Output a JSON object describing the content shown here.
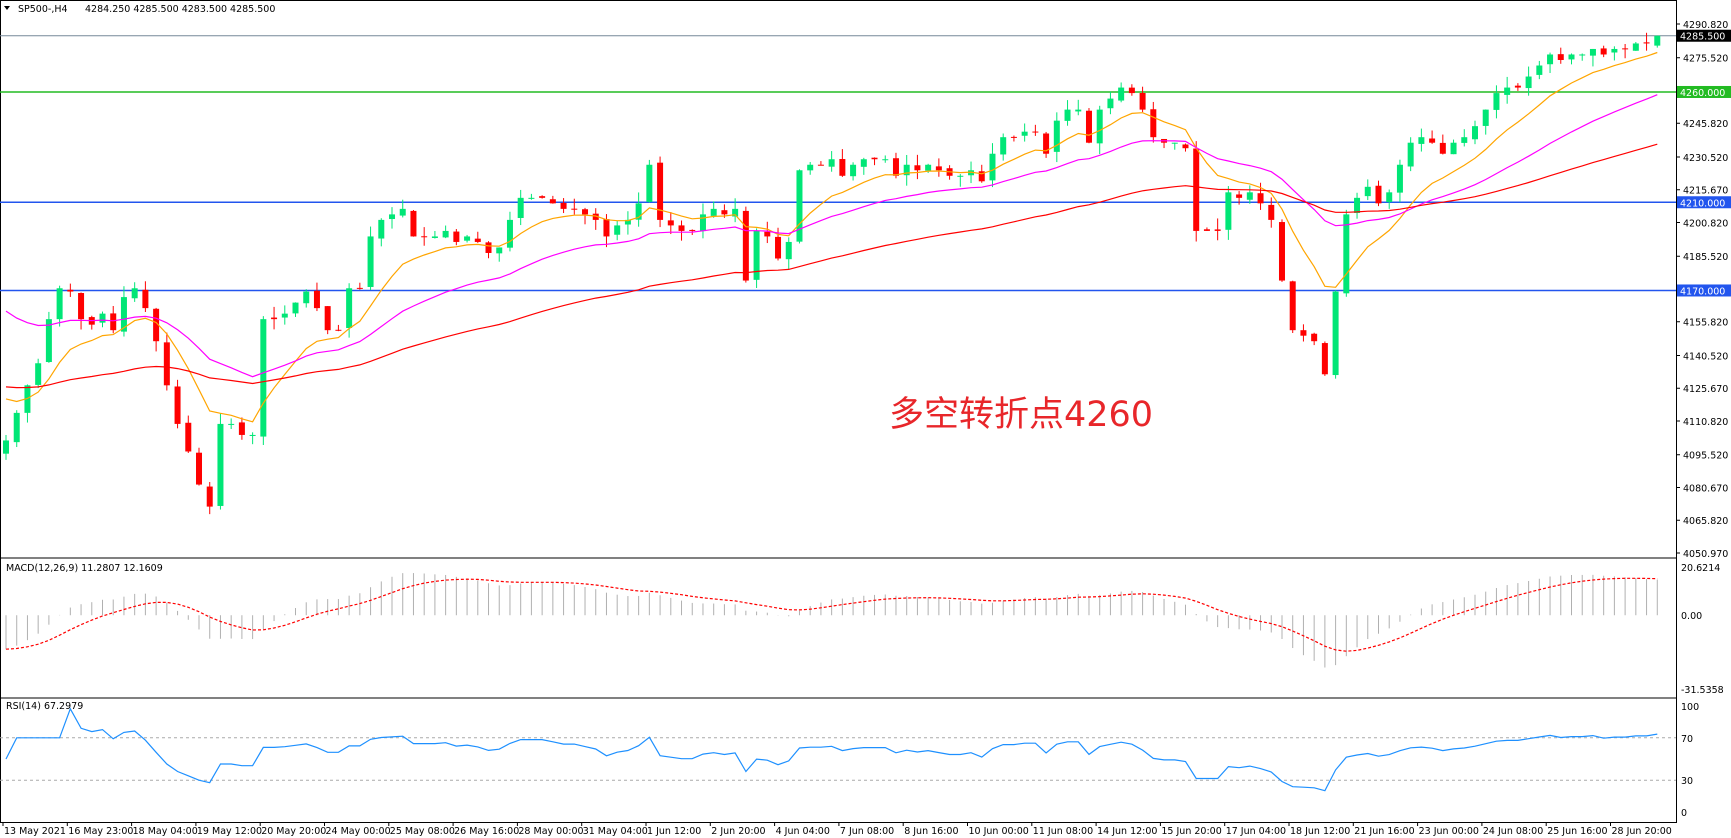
{
  "header": {
    "symbol": "SP500-,H4",
    "ohlc": "4284.250 4285.500 4283.500 4285.500"
  },
  "annotation": {
    "text": "多空转折点4260",
    "color": "#e8262a"
  },
  "colors": {
    "bull": "#00e676",
    "bear": "#ff0000",
    "ma_fast": "#ffa500",
    "ma_mid": "#ff00ff",
    "ma_slow": "#ff0000",
    "support": "#2255ee",
    "pivot": "#22bb22",
    "rsi": "#1e90ff",
    "macd_signal": "#ff0000",
    "macd_hist": "#b0b0b0"
  },
  "chart_data": {
    "type": "candlestick",
    "price_axis": {
      "ticks": [
        "4290.820",
        "4275.520",
        "4245.820",
        "4230.520",
        "4215.670",
        "4200.820",
        "4185.520",
        "4155.820",
        "4140.520",
        "4125.670",
        "4110.820",
        "4095.520",
        "4080.670",
        "4065.820",
        "4050.970"
      ],
      "range": [
        4050.97,
        4290.82
      ]
    },
    "current_price": "4285.500",
    "levels": [
      {
        "value": 4260,
        "label": "4260.000",
        "color": "#22bb22"
      },
      {
        "value": 4210,
        "label": "4210.000",
        "color": "#2255ee"
      },
      {
        "value": 4170,
        "label": "4170.000",
        "color": "#2255ee"
      }
    ],
    "closes": [
      4102,
      4114.5,
      4127,
      4137,
      4157,
      4171,
      4169.5,
      4157,
      4154.5,
      4159.5,
      4152,
      4167,
      4171,
      4162,
      4147,
      4127,
      4109.5,
      4097,
      4082,
      4072,
      4109.5,
      4109.5,
      4104.5,
      4104.5,
      4157,
      4157,
      4159.5,
      4164.5,
      4169.5,
      4162,
      4152,
      4152,
      4171,
      4171,
      4194.5,
      4202,
      4204.5,
      4207,
      4194.5,
      4194.5,
      4194.5,
      4197,
      4192,
      4194.5,
      4192,
      4187,
      4189.5,
      4202,
      4212,
      4212,
      4212,
      4209.5,
      4207,
      4207,
      4204.5,
      4202,
      4194.5,
      4199.5,
      4202,
      4209.5,
      4227,
      4202,
      4199.5,
      4197,
      4197,
      4204.5,
      4207,
      4204.5,
      4207,
      4174.5,
      4197,
      4194.5,
      4184.5,
      4192,
      4224.5,
      4227,
      4227,
      4229.5,
      4222,
      4227,
      4229.5,
      4229.5,
      4229.5,
      4222,
      4227,
      4224.5,
      4227,
      4224.5,
      4222,
      4222,
      4224.5,
      4219.5,
      4232,
      4239.5,
      4239.5,
      4242,
      4242,
      4232,
      4247,
      4252,
      4252,
      4237,
      4252,
      4257,
      4262,
      4259.5,
      4252,
      4239.5,
      4237,
      4237,
      4234.5,
      4197,
      4197,
      4197,
      4214.5,
      4212,
      4214.5,
      4209.5,
      4202,
      4174.5,
      4152,
      4149.5,
      4147,
      4132,
      4169.5,
      4204.5,
      4212,
      4217,
      4209.5,
      4214.5,
      4227,
      4237,
      4239.5,
      4237,
      4232,
      4237,
      4239.5,
      4244.5,
      4252,
      4259.5,
      4262,
      4262,
      4267,
      4272,
      4277,
      4274.5,
      4277,
      4277,
      4279.5,
      4277,
      4279.5,
      4279.5,
      4282,
      4282,
      4285.5
    ],
    "time_labels": [
      "13 May 2021",
      "16 May 23:00",
      "18 May 04:00",
      "19 May 12:00",
      "20 May 20:00",
      "24 May 00:00",
      "25 May 08:00",
      "26 May 16:00",
      "28 May 00:00",
      "31 May 04:00",
      "1 Jun 12:00",
      "2 Jun 20:00",
      "4 Jun 04:00",
      "7 Jun 08:00",
      "8 Jun 16:00",
      "10 Jun 00:00",
      "11 Jun 08:00",
      "14 Jun 12:00",
      "15 Jun 20:00",
      "17 Jun 04:00",
      "18 Jun 12:00",
      "21 Jun 16:00",
      "23 Jun 00:00",
      "24 Jun 08:00",
      "25 Jun 16:00",
      "28 Jun 20:00"
    ],
    "macd": {
      "label": "MACD(12,26,9) 11.2807 12.1609",
      "ticks": [
        "20.6214",
        "0.00",
        "-31.5358"
      ],
      "range": [
        -31.5358,
        20.6214
      ]
    },
    "rsi": {
      "label": "RSI(14) 67.2979",
      "ticks": [
        "100",
        "70",
        "30",
        "0"
      ],
      "levels": [
        70,
        30
      ]
    }
  }
}
